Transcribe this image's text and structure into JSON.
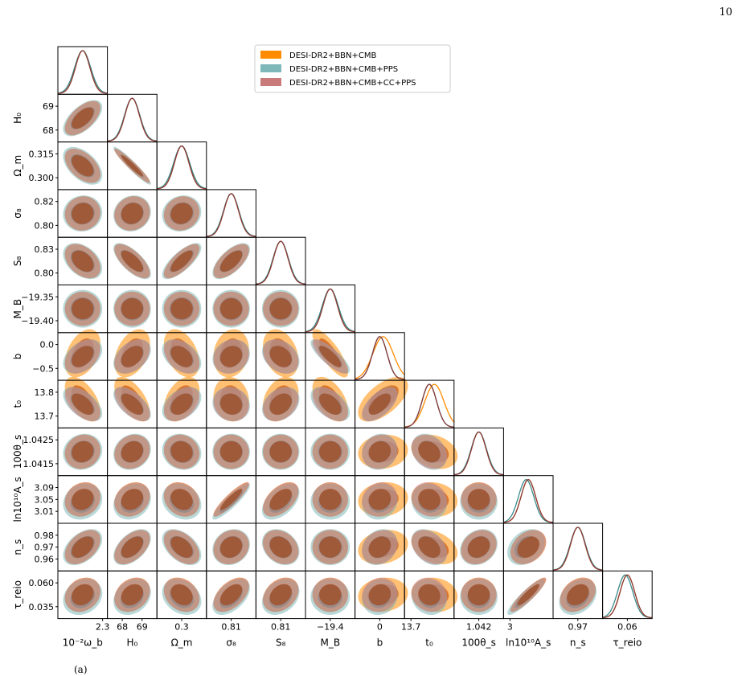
{
  "page_number": "10",
  "figure_label": "(a)",
  "chart_data": {
    "type": "corner",
    "params": [
      "ωb",
      "H0",
      "Ωm",
      "σ8",
      "S8",
      "MB",
      "b",
      "t0",
      "θs",
      "As",
      "ns",
      "tau"
    ],
    "xlabels": [
      "10⁻²ω_b",
      "H₀",
      "Ω_m",
      "σ₈",
      "S₈",
      "M_B",
      "b",
      "t₀",
      "100θ_s",
      "ln10¹⁰A_s",
      "n_s",
      "τ_reio"
    ],
    "ylabels": [
      "",
      "H₀",
      "Ω_m",
      "σ₈",
      "S₈",
      "M_B",
      "b",
      "t₀",
      "100θ_s",
      "ln10¹⁰A_s",
      "n_s",
      "τ_reio"
    ],
    "xticks": [
      [
        "2.3"
      ],
      [
        "68",
        "69"
      ],
      [
        "0.3"
      ],
      [
        "0.81"
      ],
      [
        "0.81"
      ],
      [
        "−19.4"
      ],
      [
        "0"
      ],
      [
        "13.7"
      ],
      [
        "1.042"
      ],
      [
        "3"
      ],
      [
        "0.97"
      ],
      [
        "0.06"
      ]
    ],
    "yticks": [
      [],
      [
        "69",
        "68"
      ],
      [
        "0.315",
        "0.300"
      ],
      [
        "0.82",
        "0.80"
      ],
      [
        "0.83",
        "0.80"
      ],
      [
        "−19.35",
        "−19.40"
      ],
      [
        "0.0",
        "−0.5"
      ],
      [
        "13.8",
        "13.7"
      ],
      [
        "1.0425",
        "1.0415"
      ],
      [
        "3.09",
        "3.05",
        "3.01"
      ],
      [
        "0.98",
        "0.97",
        "0.96"
      ],
      [
        "0.060",
        "0.035"
      ]
    ],
    "legend": {
      "placement": "top-center",
      "entries": [
        {
          "label": "DESI-DR2+BBN+CMB",
          "color": "#ff8c00"
        },
        {
          "label": " DESI-DR2+BBN+CMB+PPS",
          "color": "#7fb8b8"
        },
        {
          "label": "DESI-DR2+BBN+CMB+CC+PPS",
          "color": "#c97a7a"
        }
      ]
    },
    "series": [
      {
        "name": "DESI-DR2+BBN+CMB",
        "color": "#ff8c00",
        "inner": "#d2691e",
        "means": [
          0,
          0,
          0,
          0,
          0,
          0,
          0.45,
          0.7,
          0,
          0,
          0,
          0
        ],
        "sigmas": [
          1,
          1,
          1,
          1,
          1,
          1,
          1.4,
          1.3,
          1,
          1,
          1,
          1
        ]
      },
      {
        "name": " DESI-DR2+BBN+CMB+PPS",
        "color": "#7fb8b8",
        "inner": "#5a9a9a",
        "means": [
          0,
          0,
          0,
          0,
          0,
          0,
          0,
          0,
          0,
          -0.3,
          0,
          -0.3
        ],
        "sigmas": [
          1.1,
          1.05,
          1.1,
          1.05,
          1.05,
          1.1,
          1,
          1,
          1.05,
          1.05,
          1.05,
          1.05
        ]
      },
      {
        "name": "DESI-DR2+BBN+CMB+CC+PPS",
        "color": "#c97a7a",
        "inner": "#a0522d",
        "means": [
          0,
          0,
          0,
          0,
          0,
          0,
          0,
          0,
          0,
          0,
          0,
          0
        ],
        "sigmas": [
          1,
          1,
          1,
          1,
          1,
          1,
          1,
          1,
          1,
          1,
          1,
          1
        ]
      }
    ],
    "correlations": {
      "H0,ωb": 0.6,
      "Ωm,ωb": -0.5,
      "Ωm,H0": -0.95,
      "σ8,ωb": 0.05,
      "σ8,H0": 0.1,
      "σ8,Ωm": 0.1,
      "S8,ωb": -0.4,
      "S8,H0": -0.7,
      "S8,Ωm": 0.75,
      "S8,σ8": 0.65,
      "MB,ωb": 0,
      "MB,H0": 0,
      "MB,Ωm": 0,
      "MB,σ8": 0,
      "MB,S8": 0,
      "b,ωb": 0.4,
      "b,H0": 0.4,
      "b,Ωm": -0.4,
      "b,σ8": 0.15,
      "b,S8": -0.3,
      "b,MB": -0.8,
      "t0,ωb": -0.55,
      "t0,H0": -0.6,
      "t0,Ωm": 0.4,
      "t0,σ8": -0.1,
      "t0,S8": 0.3,
      "t0,MB": -0.5,
      "t0,b": 0.6,
      "θs,ωb": 0.1,
      "θs,H0": 0.15,
      "θs,Ωm": -0.1,
      "θs,σ8": 0,
      "θs,S8": 0,
      "θs,MB": 0,
      "θs,b": 0.1,
      "θs,t0": -0.25,
      "As,ωb": 0.15,
      "As,H0": 0.2,
      "As,Ωm": -0.2,
      "As,σ8": 0.9,
      "As,S8": 0.5,
      "As,MB": 0,
      "As,b": 0.1,
      "As,t0": -0.1,
      "As,θs": 0,
      "ns,ωb": 0.45,
      "ns,H0": 0.5,
      "ns,Ωm": -0.45,
      "ns,σ8": 0.15,
      "ns,S8": -0.25,
      "ns,MB": 0,
      "ns,b": 0.2,
      "ns,t0": -0.35,
      "ns,θs": 0.2,
      "ns,As": 0.3,
      "tau,ωb": 0.2,
      "tau,H0": 0.25,
      "tau,Ωm": -0.25,
      "tau,σ8": 0.5,
      "tau,S8": 0.3,
      "tau,MB": 0,
      "tau,b": 0.1,
      "tau,t0": -0.1,
      "tau,θs": 0,
      "tau,As": 0.9,
      "tau,ns": 0.3
    }
  }
}
